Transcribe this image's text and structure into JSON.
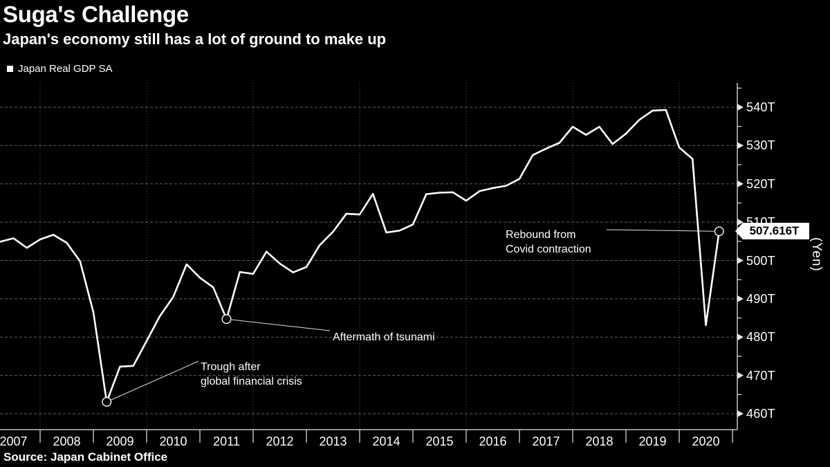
{
  "header": {
    "title": "Suga's Challenge",
    "subtitle": "Japan's economy still has a lot of ground to make up"
  },
  "legend": {
    "label": "Japan Real GDP SA"
  },
  "source": {
    "text": "Source: Japan Cabinet Office"
  },
  "colors": {
    "background": "#000000",
    "line": "#ffffff",
    "text": "#ffffff",
    "grid": "#5f5f5f",
    "axis": "#e6e6e6",
    "callout_bg": "#ffffff",
    "callout_text": "#000000"
  },
  "y_axis": {
    "unit_label": "(Yen)",
    "min": 460,
    "max": 540,
    "step": 10,
    "tick_suffix": "T",
    "tick_labels": [
      "460T",
      "470T",
      "480T",
      "490T",
      "500T",
      "510T",
      "520T",
      "530T",
      "540T"
    ]
  },
  "x_axis": {
    "years": [
      "2007",
      "2008",
      "2009",
      "2010",
      "2011",
      "2012",
      "2013",
      "2014",
      "2015",
      "2016",
      "2017",
      "2018",
      "2019",
      "2020"
    ]
  },
  "callout": {
    "label": "507.616T",
    "period": "2020Q3",
    "value": 507.616
  },
  "annotations": [
    {
      "name": "trough",
      "lines": [
        "Trough after",
        "global financial crisis"
      ],
      "target_period": "2009Q1",
      "target_index": 8
    },
    {
      "name": "tsunami",
      "lines": [
        "Aftermath of tsunami"
      ],
      "target_period": "2011Q2",
      "target_index": 17
    },
    {
      "name": "rebound",
      "lines": [
        "Rebound from",
        "Covid contraction"
      ],
      "target_period": "2020Q3",
      "target_index": 54
    }
  ],
  "chart_data": {
    "type": "line",
    "title": "Suga's Challenge",
    "subtitle": "Japan's economy still has a lot of ground to make up",
    "ylabel": "(Yen)",
    "unit": "trillion yen",
    "ylim": [
      456,
      546
    ],
    "grid": true,
    "legend_position": "top-left",
    "frequency": "quarterly",
    "series_name": "Japan Real GDP SA",
    "periods": [
      "2007Q1",
      "2007Q2",
      "2007Q3",
      "2007Q4",
      "2008Q1",
      "2008Q2",
      "2008Q3",
      "2008Q4",
      "2009Q1",
      "2009Q2",
      "2009Q3",
      "2009Q4",
      "2010Q1",
      "2010Q2",
      "2010Q3",
      "2010Q4",
      "2011Q1",
      "2011Q2",
      "2011Q3",
      "2011Q4",
      "2012Q1",
      "2012Q2",
      "2012Q3",
      "2012Q4",
      "2013Q1",
      "2013Q2",
      "2013Q3",
      "2013Q4",
      "2014Q1",
      "2014Q2",
      "2014Q3",
      "2014Q4",
      "2015Q1",
      "2015Q2",
      "2015Q3",
      "2015Q4",
      "2016Q1",
      "2016Q2",
      "2016Q3",
      "2016Q4",
      "2017Q1",
      "2017Q2",
      "2017Q3",
      "2017Q4",
      "2018Q1",
      "2018Q2",
      "2018Q3",
      "2018Q4",
      "2019Q1",
      "2019Q2",
      "2019Q3",
      "2019Q4",
      "2020Q1",
      "2020Q2",
      "2020Q3"
    ],
    "values": [
      504.9,
      505.8,
      503.3,
      505.5,
      506.7,
      504.6,
      499.8,
      486.5,
      463.1,
      472.3,
      472.5,
      479.0,
      485.5,
      490.5,
      499.0,
      495.5,
      493.0,
      484.7,
      497.0,
      496.5,
      502.3,
      499.2,
      496.9,
      498.3,
      504.0,
      507.5,
      512.2,
      512.0,
      517.4,
      507.3,
      507.8,
      509.4,
      517.3,
      517.7,
      517.8,
      515.6,
      518.1,
      518.9,
      519.5,
      521.3,
      527.5,
      529.2,
      530.7,
      534.9,
      532.8,
      534.9,
      530.4,
      533.1,
      536.7,
      539.1,
      539.3,
      529.5,
      526.5,
      483.1,
      507.616
    ],
    "markers": [
      {
        "period": "2009Q1",
        "value": 463.1,
        "note": "Trough after global financial crisis"
      },
      {
        "period": "2011Q2",
        "value": 484.7,
        "note": "Aftermath of tsunami"
      },
      {
        "period": "2020Q3",
        "value": 507.616,
        "note": "Rebound from Covid contraction"
      }
    ]
  }
}
